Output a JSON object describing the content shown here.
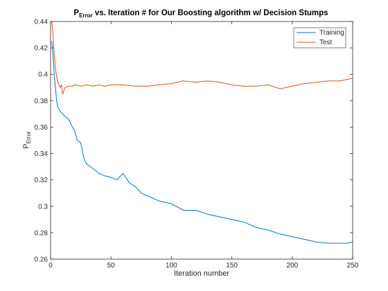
{
  "chart_data": {
    "type": "line",
    "title": {
      "prefix": "P",
      "subscript": "Error",
      "suffix": " vs. Iteration # for Our Boosting algorithm w/ Decision Stumps"
    },
    "xlabel": "Iteration number",
    "ylabel": {
      "main": "P",
      "subscript": "Error"
    },
    "xlim": [
      0,
      250
    ],
    "ylim": [
      0.26,
      0.44
    ],
    "xticks": [
      0,
      50,
      100,
      150,
      200,
      250
    ],
    "yticks": [
      0.26,
      0.28,
      0.3,
      0.32,
      0.34,
      0.36,
      0.38,
      0.4,
      0.42,
      0.44
    ],
    "ytick_labels": [
      "0.26",
      "0.28",
      "0.3",
      "0.32",
      "0.34",
      "0.36",
      "0.38",
      "0.4",
      "0.42",
      "0.44"
    ],
    "legend_position": "top-right",
    "series": [
      {
        "name": "Training",
        "color": "#0072BD",
        "x": [
          1,
          2,
          3,
          4,
          5,
          6,
          8,
          10,
          12,
          15,
          18,
          20,
          22,
          25,
          28,
          30,
          33,
          36,
          40,
          45,
          50,
          55,
          60,
          65,
          70,
          75,
          80,
          90,
          100,
          110,
          120,
          130,
          140,
          150,
          160,
          170,
          180,
          190,
          200,
          210,
          220,
          230,
          240,
          245,
          250
        ],
        "y": [
          0.425,
          0.415,
          0.4,
          0.39,
          0.38,
          0.375,
          0.372,
          0.37,
          0.368,
          0.366,
          0.36,
          0.357,
          0.35,
          0.348,
          0.335,
          0.332,
          0.33,
          0.328,
          0.325,
          0.323,
          0.322,
          0.32,
          0.325,
          0.318,
          0.315,
          0.31,
          0.308,
          0.304,
          0.302,
          0.297,
          0.297,
          0.294,
          0.292,
          0.29,
          0.288,
          0.284,
          0.282,
          0.279,
          0.277,
          0.275,
          0.273,
          0.272,
          0.272,
          0.272,
          0.273
        ]
      },
      {
        "name": "Test",
        "color": "#D95319",
        "x": [
          1,
          2,
          3,
          4,
          5,
          6,
          7,
          8,
          9,
          10,
          12,
          15,
          18,
          20,
          25,
          30,
          35,
          40,
          45,
          50,
          60,
          70,
          80,
          90,
          100,
          110,
          120,
          130,
          140,
          150,
          160,
          170,
          180,
          190,
          200,
          210,
          220,
          230,
          240,
          245,
          250
        ],
        "y": [
          0.44,
          0.43,
          0.415,
          0.405,
          0.398,
          0.394,
          0.392,
          0.39,
          0.392,
          0.385,
          0.39,
          0.391,
          0.391,
          0.392,
          0.391,
          0.392,
          0.391,
          0.392,
          0.391,
          0.392,
          0.392,
          0.391,
          0.391,
          0.392,
          0.393,
          0.395,
          0.394,
          0.395,
          0.394,
          0.392,
          0.391,
          0.391,
          0.392,
          0.389,
          0.391,
          0.393,
          0.394,
          0.395,
          0.395,
          0.396,
          0.397
        ]
      }
    ]
  }
}
